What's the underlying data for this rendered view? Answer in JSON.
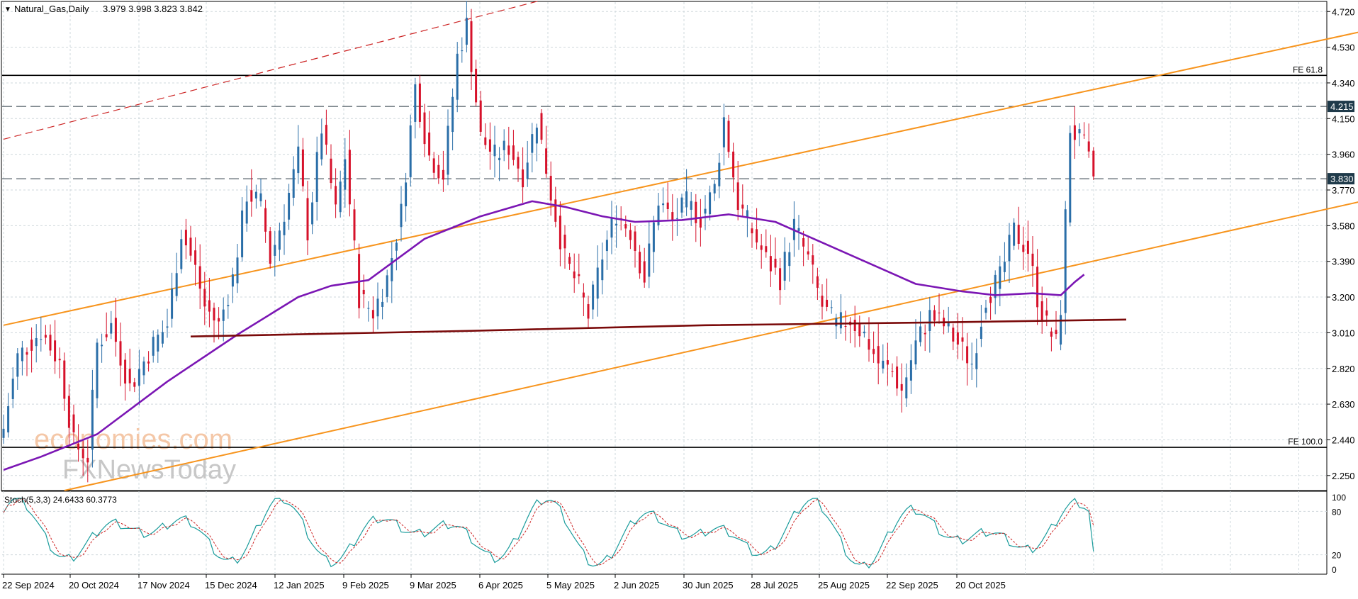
{
  "chart_data": {
    "type": "candlestick",
    "title": "Natural_Gas,Daily",
    "ohlc_text": "3.979 3.998 3.823 3.842",
    "ohlc": {
      "open": 3.979,
      "high": 3.998,
      "low": 3.823,
      "close": 3.842
    },
    "y_axis": {
      "ticks": [
        "4.720",
        "4.530",
        "4.340",
        "4.150",
        "3.960",
        "3.770",
        "3.580",
        "3.390",
        "3.200",
        "3.010",
        "2.820",
        "2.630",
        "2.440",
        "2.250"
      ],
      "range": [
        2.17,
        4.77
      ]
    },
    "x_axis": {
      "labels": [
        "22 Sep 2024",
        "20 Oct 2024",
        "17 Nov 2024",
        "15 Dec 2024",
        "12 Jan 2025",
        "9 Feb 2025",
        "9 Mar 2025",
        "6 Apr 2025",
        "5 May 2025",
        "2 Jun 2025",
        "30 Jun 2025",
        "28 Jul 2025",
        "25 Aug 2025",
        "22 Sep 2025",
        "20 Oct 2025"
      ]
    },
    "candle_keypoints": [
      [
        0,
        2.5
      ],
      [
        3,
        2.88
      ],
      [
        8,
        3.02
      ],
      [
        12,
        2.85
      ],
      [
        15,
        2.42
      ],
      [
        18,
        2.35
      ],
      [
        20,
        2.95
      ],
      [
        23,
        3.05
      ],
      [
        27,
        2.72
      ],
      [
        32,
        2.95
      ],
      [
        35,
        3.05
      ],
      [
        38,
        3.55
      ],
      [
        41,
        3.35
      ],
      [
        43,
        3.15
      ],
      [
        46,
        3.05
      ],
      [
        49,
        3.3
      ],
      [
        52,
        3.75
      ],
      [
        55,
        3.7
      ],
      [
        57,
        3.4
      ],
      [
        60,
        3.65
      ],
      [
        63,
        3.95
      ],
      [
        65,
        3.55
      ],
      [
        68,
        4.1
      ],
      [
        71,
        3.65
      ],
      [
        73,
        3.95
      ],
      [
        76,
        3.2
      ],
      [
        79,
        3.12
      ],
      [
        82,
        3.3
      ],
      [
        85,
        3.65
      ],
      [
        88,
        4.32
      ],
      [
        91,
        3.95
      ],
      [
        94,
        3.85
      ],
      [
        97,
        4.48
      ],
      [
        99,
        4.65
      ],
      [
        102,
        4.05
      ],
      [
        105,
        3.95
      ],
      [
        108,
        4.0
      ],
      [
        111,
        3.85
      ],
      [
        114,
        4.15
      ],
      [
        117,
        3.75
      ],
      [
        120,
        3.4
      ],
      [
        123,
        3.25
      ],
      [
        125,
        3.1
      ],
      [
        128,
        3.42
      ],
      [
        131,
        3.65
      ],
      [
        134,
        3.55
      ],
      [
        137,
        3.3
      ],
      [
        140,
        3.72
      ],
      [
        143,
        3.6
      ],
      [
        146,
        3.7
      ],
      [
        149,
        3.62
      ],
      [
        152,
        3.78
      ],
      [
        154,
        4.15
      ],
      [
        157,
        3.7
      ],
      [
        160,
        3.55
      ],
      [
        163,
        3.4
      ],
      [
        166,
        3.3
      ],
      [
        169,
        3.58
      ],
      [
        172,
        3.4
      ],
      [
        175,
        3.15
      ],
      [
        178,
        3.05
      ],
      [
        181,
        3.08
      ],
      [
        184,
        3.0
      ],
      [
        187,
        2.85
      ],
      [
        190,
        2.8
      ],
      [
        192,
        2.7
      ],
      [
        195,
        2.95
      ],
      [
        198,
        3.1
      ],
      [
        201,
        3.05
      ],
      [
        204,
        2.95
      ],
      [
        207,
        2.85
      ],
      [
        210,
        3.2
      ],
      [
        213,
        3.3
      ],
      [
        216,
        3.55
      ],
      [
        219,
        3.45
      ],
      [
        221,
        3.2
      ],
      [
        223,
        3.05
      ],
      [
        225,
        2.95
      ],
      [
        226,
        3.15
      ],
      [
        228,
        4.1
      ],
      [
        231,
        4.0
      ],
      [
        233,
        3.842
      ]
    ],
    "indicators": [
      {
        "name": "MA",
        "color": "#7b16b4",
        "points": [
          [
            0,
            2.28
          ],
          [
            8,
            2.35
          ],
          [
            20,
            2.47
          ],
          [
            35,
            2.75
          ],
          [
            50,
            3.0
          ],
          [
            63,
            3.2
          ],
          [
            70,
            3.26
          ],
          [
            78,
            3.29
          ],
          [
            90,
            3.51
          ],
          [
            102,
            3.63
          ],
          [
            113,
            3.71
          ],
          [
            120,
            3.68
          ],
          [
            128,
            3.63
          ],
          [
            135,
            3.6
          ],
          [
            145,
            3.61
          ],
          [
            155,
            3.64
          ],
          [
            165,
            3.6
          ],
          [
            175,
            3.49
          ],
          [
            185,
            3.38
          ],
          [
            195,
            3.27
          ],
          [
            205,
            3.23
          ],
          [
            212,
            3.21
          ],
          [
            220,
            3.22
          ],
          [
            226,
            3.21
          ],
          [
            229,
            3.28
          ],
          [
            231,
            3.32
          ]
        ]
      },
      {
        "name": "MA",
        "color": "#7a0a0a",
        "points": [
          [
            40,
            2.99
          ],
          [
            100,
            3.02
          ],
          [
            150,
            3.05
          ],
          [
            200,
            3.065
          ],
          [
            240,
            3.08
          ]
        ]
      }
    ],
    "trend_lines": [
      {
        "color": "#f7941d",
        "from": [
          0,
          3.05
        ],
        "to": [
          312,
          4.73
        ]
      },
      {
        "color": "#f7941d",
        "from": [
          13,
          2.17
        ],
        "to": [
          312,
          3.83
        ]
      },
      {
        "color": "#cc2222",
        "style": "dashed",
        "from": [
          0,
          4.04
        ],
        "to": [
          115,
          4.78
        ]
      }
    ],
    "levels": [
      {
        "label": "FE 61.8",
        "value": 4.38,
        "style": "solid"
      },
      {
        "label": "4.215",
        "value": 4.215,
        "style": "dashed",
        "tag": true
      },
      {
        "label": "3.830",
        "value": 3.83,
        "style": "dashed",
        "tag": true
      },
      {
        "label": "FE 100.0",
        "value": 2.4,
        "style": "solid"
      }
    ],
    "stochastic": {
      "label": "Stoch(5,3,3) 24.6433 60.3773",
      "ticks": [
        "100",
        "80",
        "20",
        "0"
      ],
      "values": {
        "k": 24.6433,
        "d": 60.3773
      },
      "main_color": "#1a9c9c",
      "signal_color": "#cc2222"
    }
  },
  "watermark": {
    "line1": "economies.com",
    "line2": "FXNewsToday"
  },
  "colors": {
    "bull": "#2a6ea8",
    "bear": "#d6112a",
    "grid": "#cfd8dc",
    "orange": "#f7941d",
    "purple": "#7b16b4",
    "maroon": "#7a0a0a",
    "tag_bg": "#1f3a4a"
  }
}
